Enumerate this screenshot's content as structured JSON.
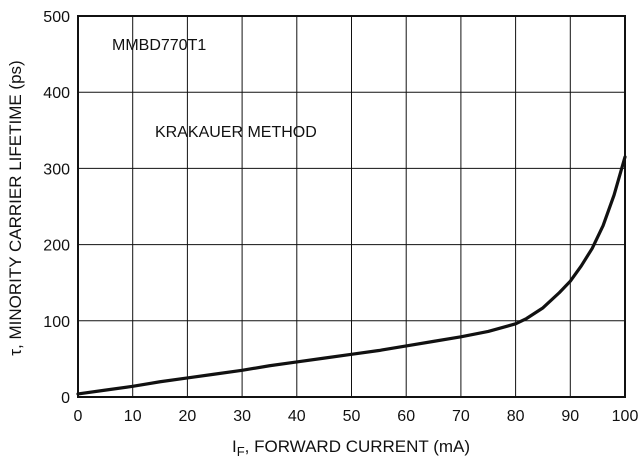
{
  "chart_data": {
    "type": "line",
    "title": "",
    "xlabel_main": "I",
    "xlabel_sub": "F",
    "xlabel_rest": ", FORWARD CURRENT (mA)",
    "ylabel_symbol": "τ",
    "ylabel_rest": ", MINORITY CARRIER LIFETIME (ps)",
    "xlim": [
      0,
      100
    ],
    "ylim": [
      0,
      500
    ],
    "x_ticks": [
      0,
      10,
      20,
      30,
      40,
      50,
      60,
      70,
      80,
      90,
      100
    ],
    "y_ticks": [
      0,
      100,
      200,
      300,
      400,
      500
    ],
    "x_tick_labels": [
      "0",
      "10",
      "20",
      "30",
      "40",
      "50",
      "60",
      "70",
      "80",
      "90",
      "100"
    ],
    "y_tick_labels": [
      "0",
      "100",
      "200",
      "300",
      "400",
      "500"
    ],
    "grid": true,
    "annotations": [
      {
        "text": "MMBD770T1"
      },
      {
        "text": "KRAKAUER METHOD"
      }
    ],
    "series": [
      {
        "x": [
          0,
          5,
          10,
          15,
          20,
          25,
          30,
          35,
          40,
          45,
          50,
          55,
          60,
          65,
          70,
          75,
          80,
          82,
          85,
          88,
          90,
          92,
          94,
          96,
          98,
          100
        ],
        "y": [
          4,
          9,
          14,
          20,
          25,
          30,
          35,
          41,
          46,
          51,
          56,
          61,
          67,
          73,
          79,
          86,
          96,
          103,
          117,
          137,
          152,
          172,
          195,
          225,
          265,
          315
        ]
      }
    ]
  }
}
